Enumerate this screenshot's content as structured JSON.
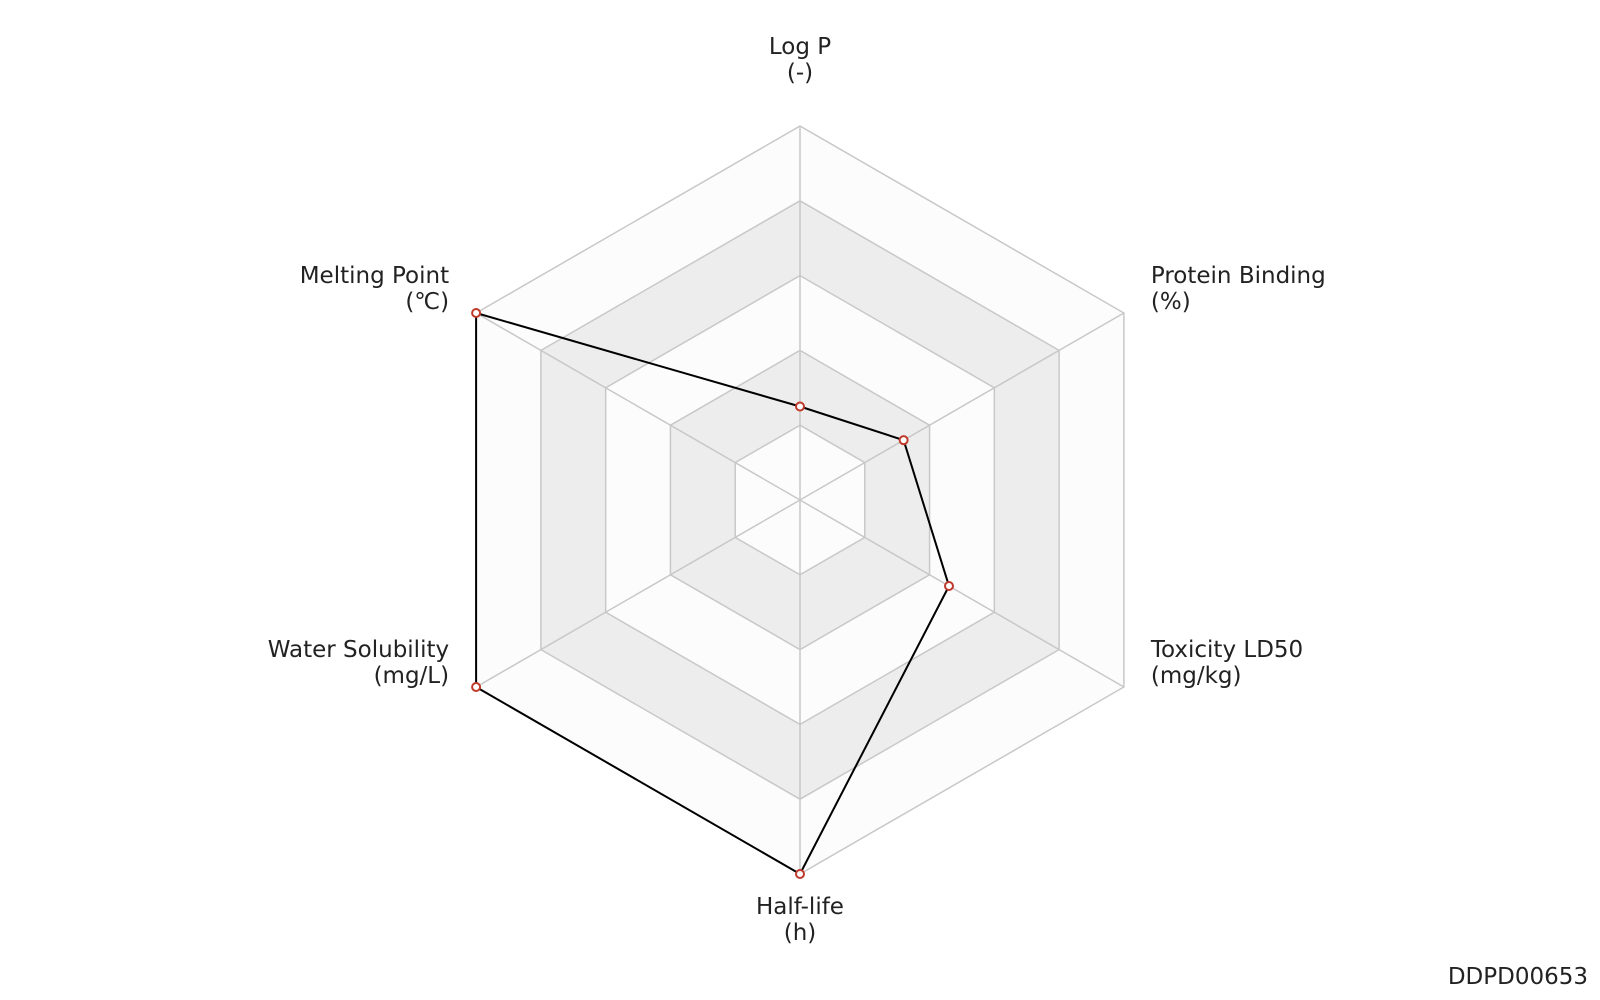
{
  "chart_data": {
    "type": "radar",
    "categories": [
      "Log P",
      "Protein Binding",
      "Toxicity LD50",
      "Half-life",
      "Water Solubility",
      "Melting Point"
    ],
    "units": [
      "(-)",
      "(%)",
      "(mg/kg)",
      "(h)",
      "(mg/L)",
      "(℃)"
    ],
    "values": [
      0.25,
      0.32,
      0.46,
      1.0,
      1.0,
      1.0
    ],
    "color": "#000000",
    "marker_color": "#c0392b",
    "ylim": [
      0,
      1
    ],
    "yticks": [
      0.2,
      0.4,
      0.6,
      0.8,
      1.0
    ],
    "grid": true,
    "watermark": "DDPD00653"
  }
}
